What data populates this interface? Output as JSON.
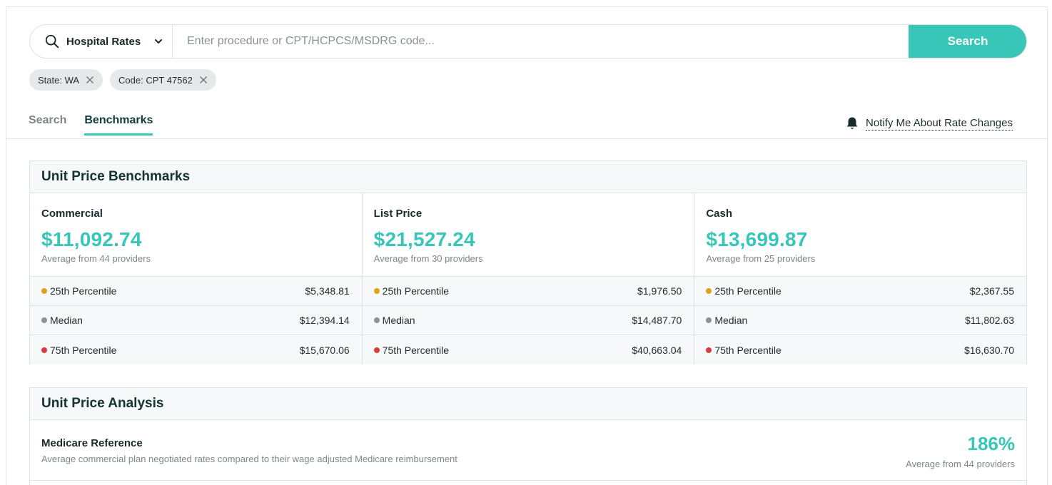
{
  "search": {
    "type_label": "Hospital Rates",
    "placeholder": "Enter procedure or CPT/HCPCS/MSDRG code...",
    "button_label": "Search"
  },
  "filters": [
    {
      "label": "State: WA"
    },
    {
      "label": "Code: CPT 47562"
    }
  ],
  "tabs": [
    {
      "label": "Search",
      "active": false
    },
    {
      "label": "Benchmarks",
      "active": true
    }
  ],
  "notify_label": "Notify Me About Rate Changes",
  "benchmarks": {
    "title": "Unit Price Benchmarks",
    "columns": [
      {
        "title": "Commercial",
        "value": "$11,092.74",
        "subtitle": "Average from 44 providers",
        "rows": [
          {
            "label": "25th Percentile",
            "value": "$5,348.81",
            "color": "#e0a21b"
          },
          {
            "label": "Median",
            "value": "$12,394.14",
            "color": "#8a9399"
          },
          {
            "label": "75th Percentile",
            "value": "$15,670.06",
            "color": "#d93b3b"
          }
        ]
      },
      {
        "title": "List Price",
        "value": "$21,527.24",
        "subtitle": "Average from 30 providers",
        "rows": [
          {
            "label": "25th Percentile",
            "value": "$1,976.50",
            "color": "#e0a21b"
          },
          {
            "label": "Median",
            "value": "$14,487.70",
            "color": "#8a9399"
          },
          {
            "label": "75th Percentile",
            "value": "$40,663.04",
            "color": "#d93b3b"
          }
        ]
      },
      {
        "title": "Cash",
        "value": "$13,699.87",
        "subtitle": "Average from 25 providers",
        "rows": [
          {
            "label": "25th Percentile",
            "value": "$2,367.55",
            "color": "#e0a21b"
          },
          {
            "label": "Median",
            "value": "$11,802.63",
            "color": "#8a9399"
          },
          {
            "label": "75th Percentile",
            "value": "$16,630.70",
            "color": "#d93b3b"
          }
        ]
      }
    ]
  },
  "analysis": {
    "title": "Unit Price Analysis",
    "items": [
      {
        "title": "Medicare Reference",
        "description": "Average commercial plan negotiated rates compared to their wage adjusted Medicare reimbursement",
        "value": "186%",
        "subtitle": "Average from 44 providers"
      }
    ]
  },
  "colors": {
    "accent": "#38c6b8",
    "heading": "#143333"
  }
}
